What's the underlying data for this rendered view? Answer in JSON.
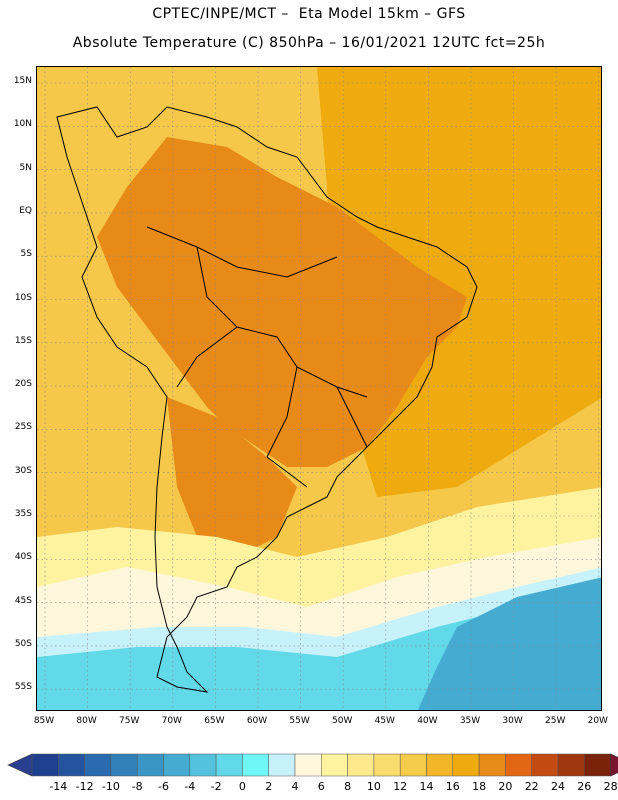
{
  "title_line1": "CPTEC/INPE/MCT –  Eta Model 15km – GFS",
  "title_line2": "Absolute Temperature (C) 850hPa – 16/01/2021 12UTC fct=25h",
  "lat_labels": [
    "15N",
    "10N",
    "5N",
    "EQ",
    "5S",
    "10S",
    "15S",
    "20S",
    "25S",
    "30S",
    "35S",
    "40S",
    "45S",
    "50S",
    "55S"
  ],
  "lon_labels": [
    "85W",
    "80W",
    "75W",
    "70W",
    "65W",
    "60W",
    "55W",
    "50W",
    "45W",
    "40W",
    "35W",
    "30W",
    "25W",
    "20W"
  ],
  "colorbar": {
    "labels": [
      "-14",
      "-12",
      "-10",
      "-8",
      "-6",
      "-4",
      "-2",
      "0",
      "2",
      "4",
      "6",
      "8",
      "10",
      "12",
      "14",
      "16",
      "18",
      "20",
      "22",
      "24",
      "26",
      "28"
    ],
    "colors": [
      "#1f3f8f",
      "#24549f",
      "#2a6aae",
      "#3181b8",
      "#3a96c4",
      "#45abd0",
      "#53c2dd",
      "#62d9e8",
      "#6ff6f6",
      "#c8f2fb",
      "#fff7dc",
      "#fff3a0",
      "#fde98c",
      "#f9dc6e",
      "#f5cc4a",
      "#f2b628",
      "#eeaa0e",
      "#e88a18",
      "#e36614",
      "#c34a10",
      "#a0360e",
      "#7a220a"
    ],
    "low_color": "#2a3f90",
    "high_color": "#7a1530"
  },
  "map": {
    "colors": {
      "ocean_warm": "#f5c84a",
      "ocean_hot": "#eeaa0e",
      "land_hot": "#e88a18",
      "cool_cream": "#fff3a0",
      "cool_pale": "#fff7dc",
      "cold_light": "#c8f2fb",
      "cold_cyan": "#62d9e8",
      "cold_blue": "#45abd0",
      "coast": "#000000",
      "grid": "#888888"
    }
  }
}
